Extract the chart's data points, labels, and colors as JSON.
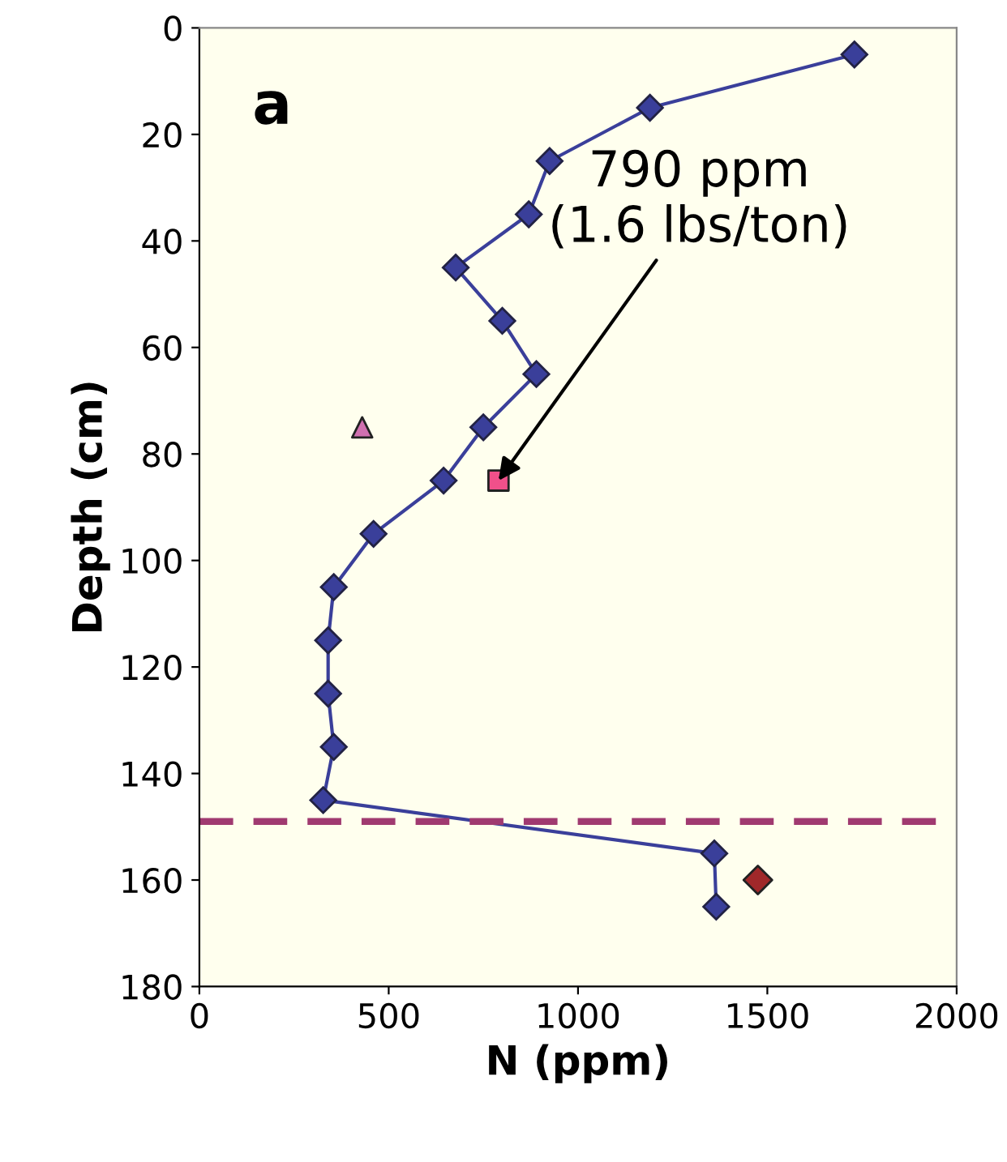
{
  "chart_data": {
    "type": "line",
    "xlabel": "N (ppm)",
    "ylabel": "Depth (cm)",
    "xlim": [
      0,
      2000
    ],
    "xticks": [
      0,
      500,
      1000,
      1500,
      2000
    ],
    "ylim": [
      180,
      0
    ],
    "yticks": [
      0,
      20,
      40,
      60,
      80,
      100,
      120,
      140,
      160,
      180
    ],
    "grid": false,
    "legend": false,
    "series": [
      {
        "marker": "diamond",
        "color": "#3a3f9a",
        "x": [
          1730,
          1190,
          925,
          870,
          677,
          800,
          890,
          750,
          645,
          460,
          355,
          340,
          340,
          355,
          327,
          1360,
          1365
        ],
        "values": [
          5,
          15,
          25,
          35,
          45,
          55,
          65,
          75,
          85,
          95,
          105,
          115,
          125,
          135,
          145,
          155,
          165
        ]
      },
      {
        "type": "scatter",
        "marker": "triangle",
        "color": "#d070b0",
        "x": [
          430
        ],
        "values": [
          75
        ]
      },
      {
        "type": "scatter",
        "marker": "square",
        "color": "#f0508a",
        "x": [
          790
        ],
        "values": [
          85
        ]
      },
      {
        "type": "scatter",
        "marker": "diamond",
        "color": "#a0282a",
        "x": [
          1475
        ],
        "values": [
          160
        ]
      }
    ],
    "ref_lines": [
      {
        "axis": "y",
        "value": 149,
        "color": "#a03a70",
        "line_style": "dashed"
      }
    ],
    "annotations": [
      "a",
      {
        "text": "790 ppm\n(1.6 lbs/ton)",
        "x": 790,
        "y": 85
      }
    ]
  }
}
